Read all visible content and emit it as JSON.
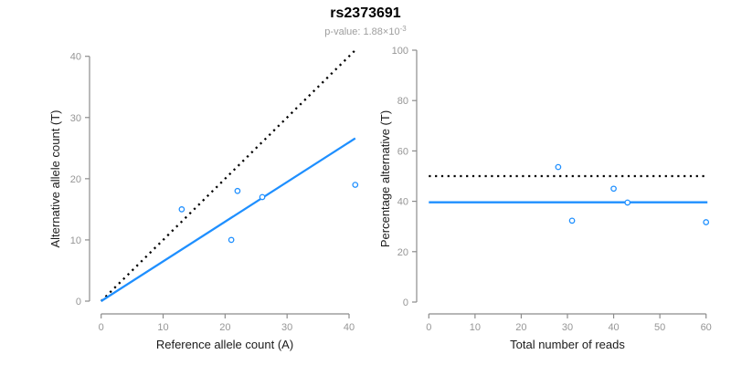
{
  "header": {
    "title": "rs2373691",
    "subtitle_main": "p-value: 1.88×10",
    "subtitle_exponent": "-3"
  },
  "colors": {
    "accent": "#1e8fff",
    "axis": "#8c8c8c",
    "tick_label": "#969696",
    "dotted_line": "#000000"
  },
  "chart_data": [
    {
      "type": "scatter",
      "xlabel": "Reference allele count (A)",
      "ylabel": "Alternative allele count (T)",
      "xlim": [
        0,
        41
      ],
      "ylim": [
        0,
        41
      ],
      "xticks": [
        0,
        10,
        20,
        30,
        40
      ],
      "yticks": [
        0,
        10,
        20,
        30,
        40
      ],
      "grid": false,
      "points": [
        [
          13,
          15
        ],
        [
          22,
          18
        ],
        [
          26,
          17
        ],
        [
          21,
          10
        ],
        [
          41,
          19
        ]
      ],
      "lines": [
        {
          "name": "identity-line",
          "style": "dotted",
          "color": "#000000",
          "x1": 0,
          "y1": 0,
          "x2": 41,
          "y2": 41
        },
        {
          "name": "fit-line",
          "style": "solid",
          "color": "#1e8fff",
          "x1": 0,
          "y1": 0,
          "x2": 41,
          "y2": 26.6
        }
      ]
    },
    {
      "type": "scatter",
      "xlabel": "Total number of reads",
      "ylabel": "Percentage alternative (T)",
      "xlim": [
        0,
        61
      ],
      "ylim": [
        0,
        100
      ],
      "xticks": [
        0,
        10,
        20,
        30,
        40,
        50,
        60
      ],
      "yticks": [
        0,
        20,
        40,
        60,
        80,
        100
      ],
      "grid": false,
      "points": [
        [
          28,
          53.6
        ],
        [
          40,
          45
        ],
        [
          43,
          39.5
        ],
        [
          31,
          32.3
        ],
        [
          60,
          31.7
        ]
      ],
      "lines": [
        {
          "name": "expected-50-line",
          "style": "dotted",
          "color": "#000000",
          "x1": 0,
          "y1": 50,
          "x2": 60.3,
          "y2": 50
        },
        {
          "name": "fit-line",
          "style": "solid",
          "color": "#1e8fff",
          "x1": 0,
          "y1": 39.6,
          "x2": 60.3,
          "y2": 39.6
        }
      ]
    }
  ]
}
